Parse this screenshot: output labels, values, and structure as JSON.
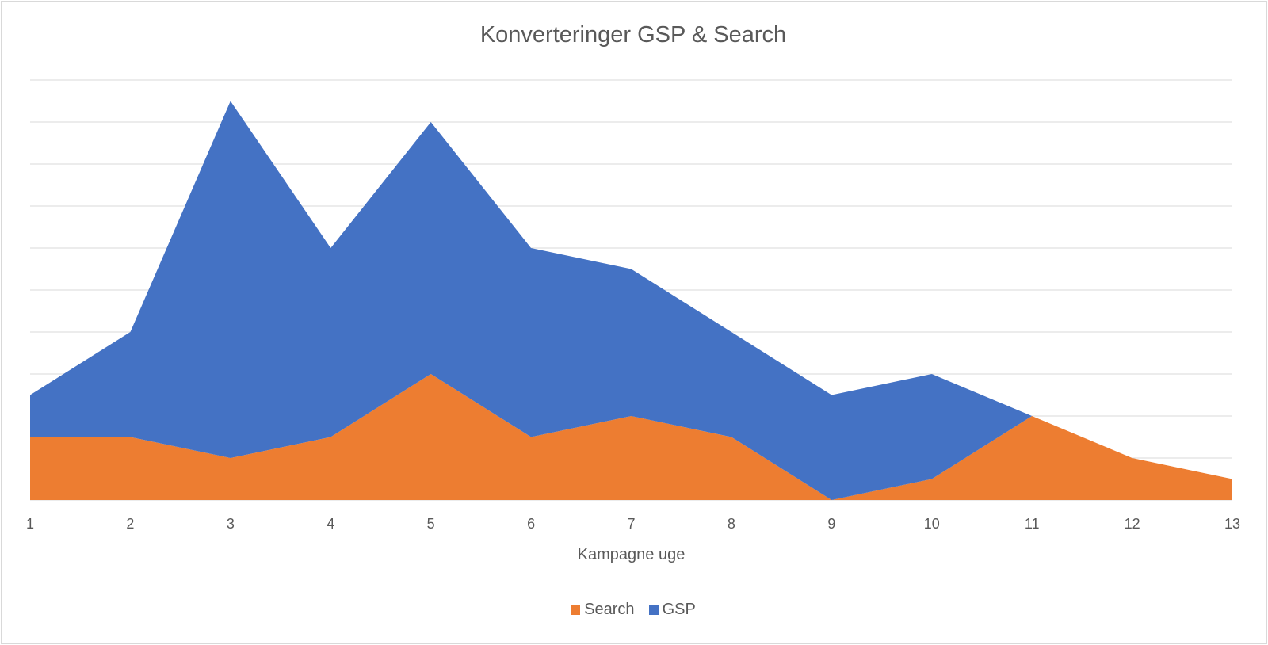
{
  "chart_data": {
    "type": "area",
    "stacked": true,
    "title": "Konverteringer GSP & Search",
    "xlabel": "Kampagne uge",
    "ylabel": "",
    "categories": [
      "1",
      "2",
      "3",
      "4",
      "5",
      "6",
      "7",
      "8",
      "9",
      "10",
      "11",
      "12",
      "13"
    ],
    "ylim": [
      0,
      20
    ],
    "y_gridlines": 10,
    "y_tick_labels_shown": false,
    "grid": true,
    "legend_position": "bottom",
    "series": [
      {
        "name": "Search",
        "color": "#ED7D31",
        "values": [
          3,
          3,
          2,
          3,
          6,
          3,
          4,
          3,
          0,
          1,
          4,
          2,
          1
        ]
      },
      {
        "name": "GSP",
        "color": "#4472C4",
        "values": [
          2,
          5,
          17,
          9,
          12,
          9,
          7,
          5,
          5,
          5,
          0,
          0,
          0
        ]
      }
    ]
  }
}
